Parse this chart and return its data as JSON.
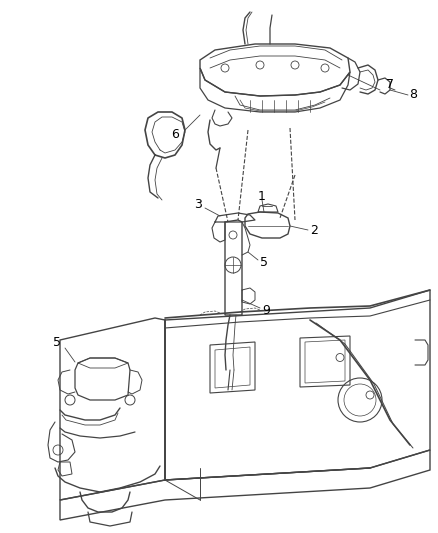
{
  "background_color": "#ffffff",
  "line_color": "#444444",
  "fig_width": 4.38,
  "fig_height": 5.33,
  "dpi": 100
}
